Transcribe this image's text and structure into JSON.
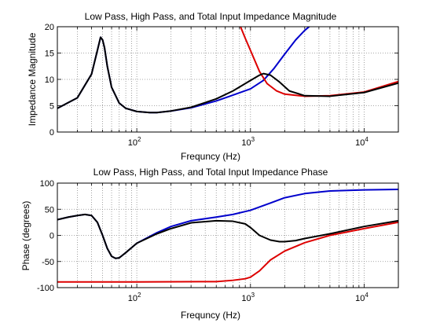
{
  "chart_data": [
    {
      "type": "line",
      "title": "Low Pass, High Pass, and Total Input Impedance Magnitude",
      "xlabel": "Frequncy (Hz)",
      "ylabel": "Impedance Magnitude",
      "xscale": "log",
      "xlim": [
        20,
        20000
      ],
      "ylim": [
        0,
        20
      ],
      "yticks": [
        0,
        5,
        10,
        15,
        20
      ],
      "ytick_labels": [
        "0",
        "5",
        "10",
        "15",
        "20"
      ],
      "xtick_labels": [
        {
          "base": "10",
          "exp": "2"
        },
        {
          "base": "10",
          "exp": "3"
        },
        {
          "base": "10",
          "exp": "4"
        }
      ],
      "grid": "dotted",
      "series": [
        {
          "color": "#0000cc",
          "x": [
            20,
            30,
            40,
            45,
            48,
            50,
            52,
            55,
            60,
            70,
            80,
            100,
            130,
            150,
            200,
            300,
            500,
            700,
            1000,
            1300,
            1600,
            2000,
            2500,
            3000,
            3500
          ],
          "y": [
            4.5,
            6.5,
            11,
            15.5,
            18,
            17.5,
            16,
            12.5,
            8.5,
            5.5,
            4.5,
            3.9,
            3.7,
            3.7,
            4,
            4.6,
            5.9,
            7,
            8.2,
            9.8,
            12,
            14.8,
            17.5,
            19.3,
            20.5
          ]
        },
        {
          "color": "#dd0000",
          "x": [
            800,
            900,
            1000,
            1200,
            1400,
            1700,
            2000,
            3000,
            5000,
            10000,
            20000
          ],
          "y": [
            20.5,
            17.8,
            15.5,
            11.5,
            9.2,
            7.8,
            7.2,
            6.8,
            6.9,
            7.6,
            9.6
          ]
        },
        {
          "color": "#000000",
          "x": [
            20,
            30,
            40,
            45,
            48,
            50,
            52,
            55,
            60,
            70,
            80,
            100,
            130,
            150,
            200,
            300,
            500,
            700,
            1000,
            1200,
            1300,
            1500,
            1800,
            2200,
            3000,
            5000,
            10000,
            20000
          ],
          "y": [
            4.5,
            6.5,
            11,
            15.5,
            18,
            17.5,
            16,
            12.5,
            8.5,
            5.5,
            4.5,
            3.9,
            3.7,
            3.7,
            4,
            4.7,
            6.3,
            7.8,
            9.8,
            10.8,
            11.1,
            10.8,
            9.5,
            7.8,
            6.9,
            6.8,
            7.5,
            9.3
          ]
        }
      ]
    },
    {
      "type": "line",
      "title": "Low Pass, High Pass, and Total Input Impedance Phase",
      "xlabel": "Frequncy (Hz)",
      "ylabel": "Phase (degrees)",
      "xscale": "log",
      "xlim": [
        20,
        20000
      ],
      "ylim": [
        -100,
        100
      ],
      "yticks": [
        -100,
        -50,
        0,
        50,
        100
      ],
      "ytick_labels": [
        "-100",
        "-50",
        "0",
        "50",
        "100"
      ],
      "xtick_labels": [
        {
          "base": "10",
          "exp": "2"
        },
        {
          "base": "10",
          "exp": "3"
        },
        {
          "base": "10",
          "exp": "4"
        }
      ],
      "grid": "dotted",
      "series": [
        {
          "color": "#dd0000",
          "x": [
            20,
            100,
            500,
            700,
            900,
            1000,
            1200,
            1500,
            2000,
            3000,
            5000,
            10000,
            20000
          ],
          "y": [
            -89,
            -89,
            -88.5,
            -86,
            -83,
            -80,
            -68,
            -47,
            -30,
            -14,
            0,
            13,
            25
          ]
        },
        {
          "color": "#0000cc",
          "x": [
            20,
            25,
            30,
            35,
            40,
            45,
            50,
            55,
            60,
            65,
            70,
            80,
            100,
            150,
            200,
            300,
            500,
            700,
            1000,
            1500,
            2000,
            3000,
            5000,
            10000,
            20000
          ],
          "y": [
            30,
            35,
            38,
            40,
            38,
            25,
            0,
            -25,
            -40,
            -44,
            -43,
            -33,
            -15,
            5,
            17,
            28,
            35,
            40,
            48,
            62,
            72,
            80,
            85,
            87,
            88
          ]
        },
        {
          "color": "#000000",
          "x": [
            20,
            25,
            30,
            35,
            40,
            45,
            50,
            55,
            60,
            65,
            70,
            80,
            100,
            150,
            200,
            300,
            500,
            700,
            900,
            1000,
            1200,
            1500,
            1800,
            2000,
            2500,
            3000,
            5000,
            10000,
            20000
          ],
          "y": [
            30,
            35,
            38,
            40,
            38,
            25,
            0,
            -25,
            -40,
            -44,
            -43,
            -33,
            -15,
            3,
            13,
            24,
            28,
            27,
            22,
            15,
            0,
            -9,
            -12,
            -12,
            -10,
            -6,
            3,
            17,
            28
          ]
        }
      ]
    }
  ]
}
